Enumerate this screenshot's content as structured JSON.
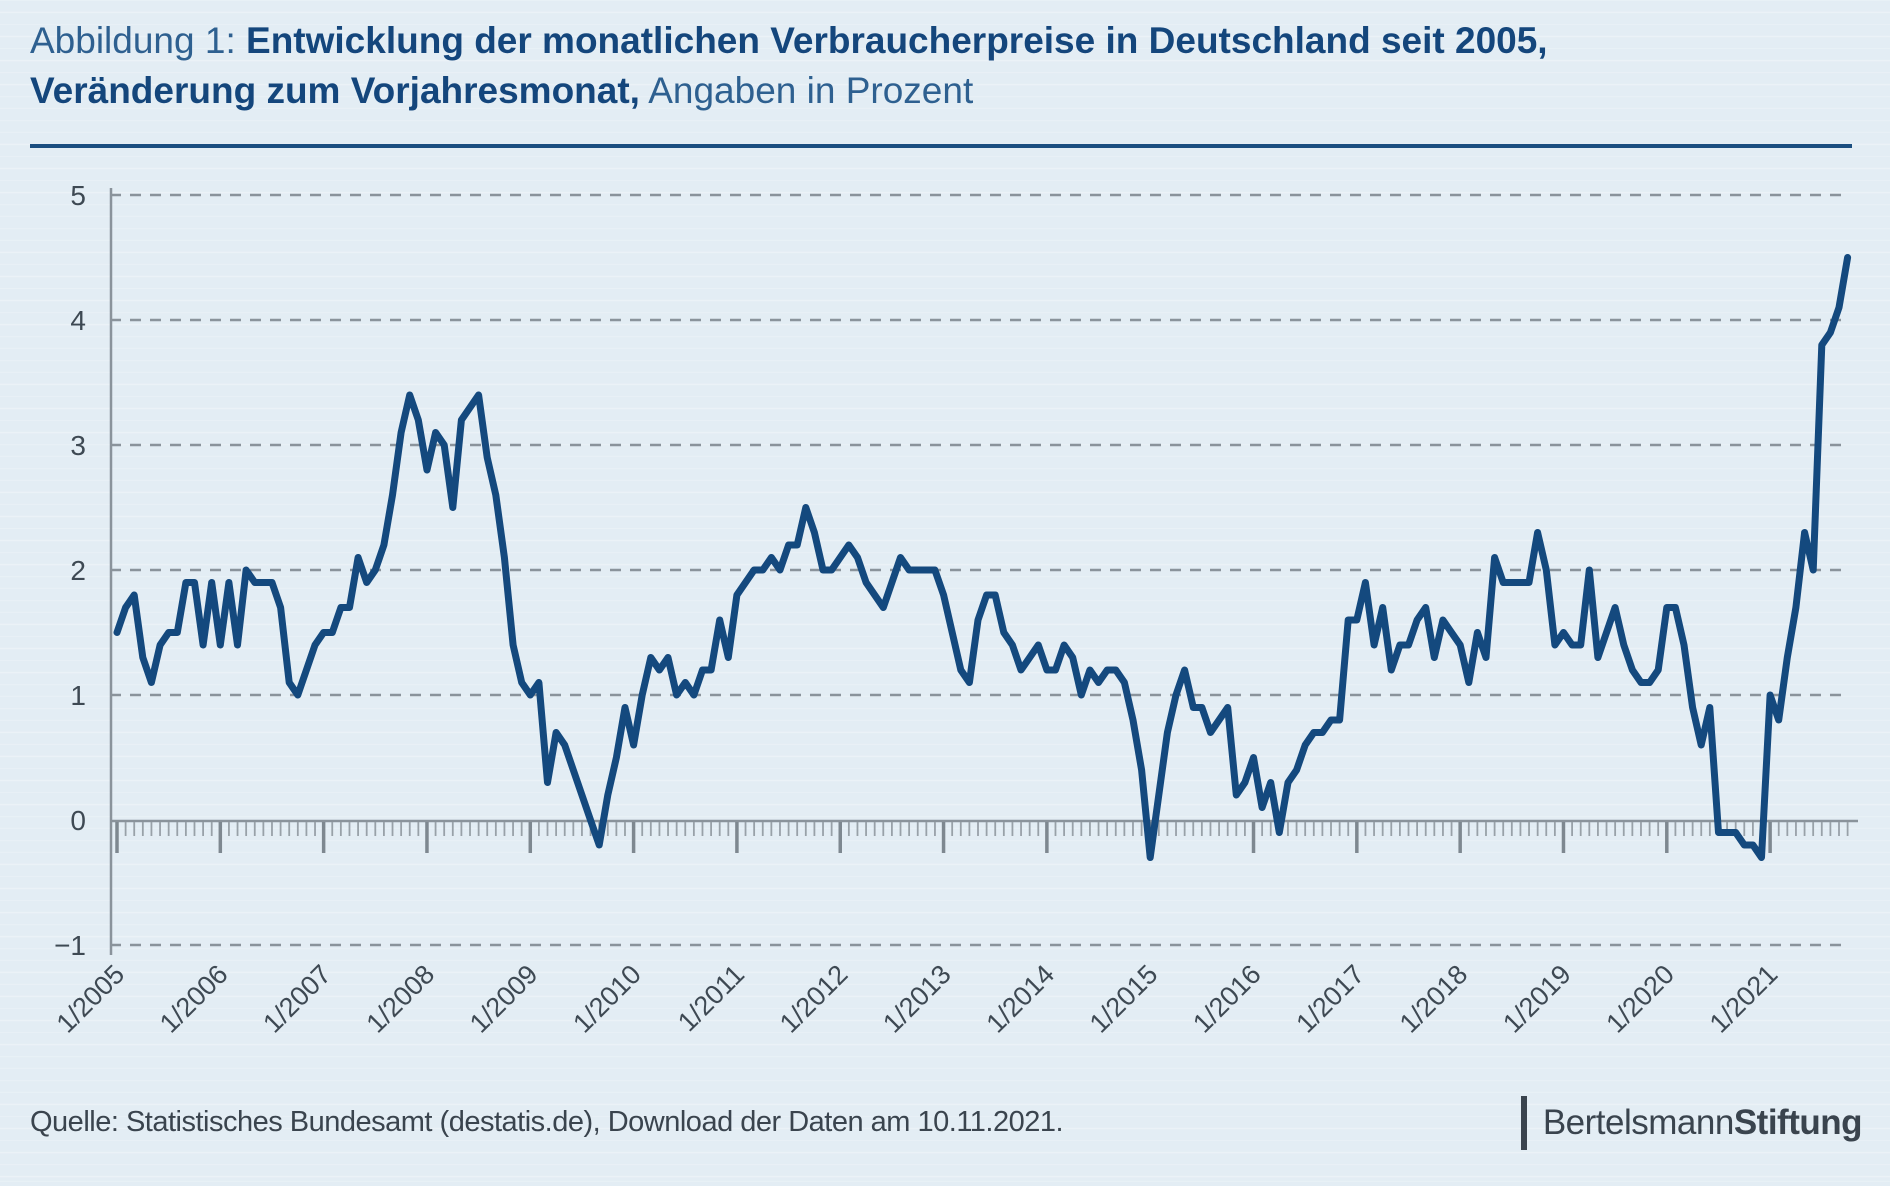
{
  "figure": {
    "label": "Abbildung 1:",
    "line1_bold": "Entwicklung der monatlichen Verbraucherpreise in Deutschland seit 2005,",
    "line2_bold": "Veränderung zum Vorjahresmonat,",
    "line2_regular": "Angaben in Prozent"
  },
  "source": {
    "text": "Quelle: Statistisches Bundesamt (destatis.de), Download der Daten am 10.11.2021."
  },
  "logo": {
    "name_regular": "Bertelsmann",
    "name_bold": "Stiftung"
  },
  "colors": {
    "line": "#14497e",
    "grid": "#8a939b",
    "axis": "#8a939b",
    "minor_tick": "#98a1a8",
    "major_tick": "#7e8890",
    "tick_label": "#3e4953",
    "title_accent": "#14467c",
    "background": "#e3edf4"
  },
  "chart_data": {
    "type": "line",
    "title": "Entwicklung der monatlichen Verbraucherpreise in Deutschland seit 2005, Veränderung zum Vorjahresmonat, Angaben in Prozent",
    "xlabel": "",
    "ylabel": "",
    "ylim": [
      -1,
      5
    ],
    "y_tick_labels": [
      "5",
      "4",
      "3",
      "2",
      "1",
      "0",
      "−1"
    ],
    "y_tick_values": [
      5,
      4,
      3,
      2,
      1,
      0,
      -1
    ],
    "x_tick_labels": [
      "1/2005",
      "1/2006",
      "1/2007",
      "1/2008",
      "1/2009",
      "1/2010",
      "1/2011",
      "1/2012",
      "1/2013",
      "1/2014",
      "1/2015",
      "1/2016",
      "1/2017",
      "1/2018",
      "1/2019",
      "1/2020",
      "1/2021"
    ],
    "minor_ticks": "monthly",
    "grid": "horizontal dashed",
    "legend": "none",
    "start_month": "1/2005",
    "end_month": "10/2021",
    "series": [
      {
        "name": "Verbraucherpreise, Veränderung zum Vorjahresmonat (%)",
        "values": [
          1.5,
          1.7,
          1.8,
          1.3,
          1.1,
          1.4,
          1.5,
          1.5,
          1.9,
          1.9,
          1.4,
          1.9,
          1.4,
          1.9,
          1.4,
          2.0,
          1.9,
          1.9,
          1.9,
          1.7,
          1.1,
          1.0,
          1.2,
          1.4,
          1.5,
          1.5,
          1.7,
          1.7,
          2.1,
          1.9,
          2.0,
          2.2,
          2.6,
          3.1,
          3.4,
          3.2,
          2.8,
          3.1,
          3.0,
          2.5,
          3.2,
          3.3,
          3.4,
          2.9,
          2.6,
          2.1,
          1.4,
          1.1,
          1.0,
          1.1,
          0.3,
          0.7,
          0.6,
          0.4,
          0.2,
          0.0,
          -0.2,
          0.2,
          0.5,
          0.9,
          0.6,
          1.0,
          1.3,
          1.2,
          1.3,
          1.0,
          1.1,
          1.0,
          1.2,
          1.2,
          1.6,
          1.3,
          1.8,
          1.9,
          2.0,
          2.0,
          2.1,
          2.0,
          2.2,
          2.2,
          2.5,
          2.3,
          2.0,
          2.0,
          2.1,
          2.2,
          2.1,
          1.9,
          1.8,
          1.7,
          1.9,
          2.1,
          2.0,
          2.0,
          2.0,
          2.0,
          1.8,
          1.5,
          1.2,
          1.1,
          1.6,
          1.8,
          1.8,
          1.5,
          1.4,
          1.2,
          1.3,
          1.4,
          1.2,
          1.2,
          1.4,
          1.3,
          1.0,
          1.2,
          1.1,
          1.2,
          1.2,
          1.1,
          0.8,
          0.4,
          -0.3,
          0.2,
          0.7,
          1.0,
          1.2,
          0.9,
          0.9,
          0.7,
          0.8,
          0.9,
          0.2,
          0.3,
          0.5,
          0.1,
          0.3,
          -0.1,
          0.3,
          0.4,
          0.6,
          0.7,
          0.7,
          0.8,
          0.8,
          1.6,
          1.6,
          1.9,
          1.4,
          1.7,
          1.2,
          1.4,
          1.4,
          1.6,
          1.7,
          1.3,
          1.6,
          1.5,
          1.4,
          1.1,
          1.5,
          1.3,
          2.1,
          1.9,
          1.9,
          1.9,
          1.9,
          2.3,
          2.0,
          1.4,
          1.5,
          1.4,
          1.4,
          2.0,
          1.3,
          1.5,
          1.7,
          1.4,
          1.2,
          1.1,
          1.1,
          1.2,
          1.7,
          1.7,
          1.4,
          0.9,
          0.6,
          0.9,
          -0.1,
          -0.1,
          -0.1,
          -0.2,
          -0.2,
          -0.3,
          1.0,
          0.8,
          1.3,
          1.7,
          2.3,
          2.0,
          3.8,
          3.9,
          4.1,
          4.5
        ]
      }
    ]
  }
}
